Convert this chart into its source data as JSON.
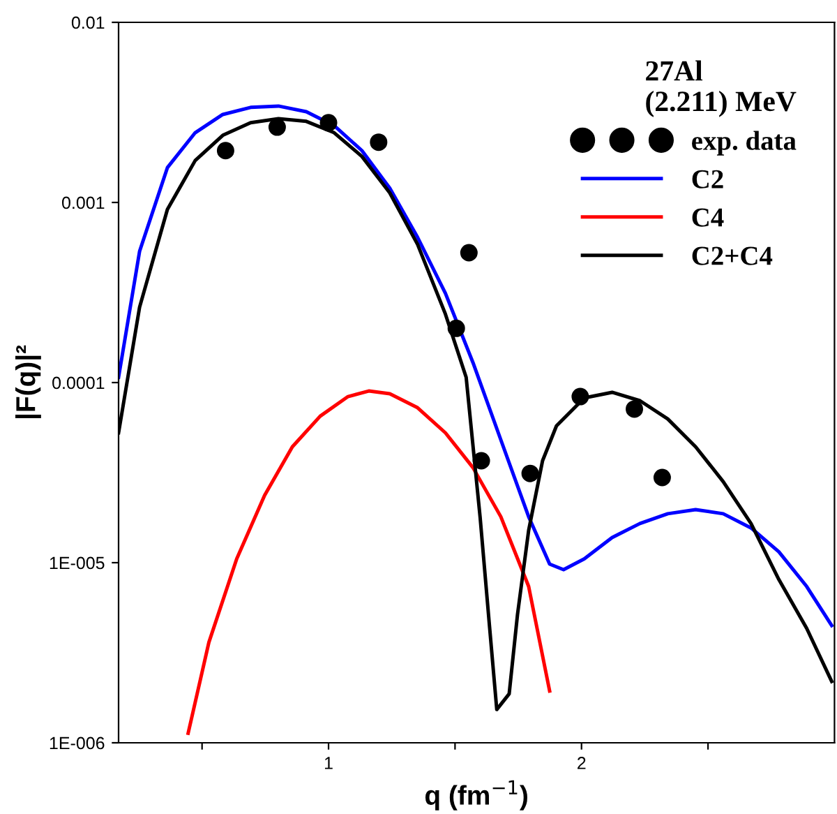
{
  "chart_data": {
    "type": "line",
    "legend_title": "27Al\n(2.211) MeV",
    "xlabel": "q (fm$^{−1}$)",
    "ylabel": "|F(q)|²",
    "log": "y",
    "legend": "top right",
    "grid": false,
    "xlim": [
      0.17,
      3.0
    ],
    "xticks": [
      {
        "value": 0.5,
        "label": null
      },
      1,
      {
        "value": 1.5,
        "label": null
      },
      2,
      {
        "value": 2.5,
        "label": null
      }
    ],
    "ylim": [
      1e-06,
      0.01
    ],
    "yticks": [
      {
        "value": 0.01,
        "label": "0.01"
      },
      {
        "value": 0.001,
        "label": "0.001"
      },
      {
        "value": 0.0001,
        "label": "0.0001"
      },
      {
        "value": 1e-05,
        "label": "1E-005"
      },
      {
        "value": 1e-06,
        "label": "1E-006"
      }
    ],
    "series": [
      {
        "name": "exp. data",
        "type": "scatter",
        "marker": "circle",
        "color": "#000000",
        "x": [
          0.593,
          0.797,
          1.0,
          1.198,
          1.505,
          1.555,
          1.604,
          1.797,
          1.995,
          2.209,
          2.319
        ],
        "values": [
          0.00194,
          0.00262,
          0.00277,
          0.00216,
          0.0002,
          0.000526,
          3.68e-05,
          3.13e-05,
          8.36e-05,
          7.13e-05,
          2.97e-05
        ]
      },
      {
        "name": "C2",
        "color": "#0000ff",
        "x": [
          0.17,
          0.253,
          0.363,
          0.473,
          0.582,
          0.692,
          0.802,
          0.912,
          1.022,
          1.132,
          1.242,
          1.352,
          1.462,
          1.571,
          1.681,
          1.791,
          1.874,
          1.929,
          2.011,
          2.121,
          2.231,
          2.341,
          2.451,
          2.56,
          2.67,
          2.78,
          2.89,
          2.989
        ],
        "values": [
          0.000107,
          0.000535,
          0.00156,
          0.00244,
          0.00308,
          0.00337,
          0.00343,
          0.00319,
          0.00267,
          0.00194,
          0.0012,
          0.00064,
          0.000313,
          0.000129,
          4.81e-05,
          1.8e-05,
          9.82e-06,
          9.15e-06,
          1.05e-05,
          1.38e-05,
          1.65e-05,
          1.87e-05,
          1.97e-05,
          1.87e-05,
          1.56e-05,
          1.15e-05,
          7.38e-06,
          4.48e-06
        ]
      },
      {
        "name": "C4",
        "color": "#ff0000",
        "x": [
          0.445,
          0.527,
          0.637,
          0.747,
          0.857,
          0.967,
          1.077,
          1.159,
          1.242,
          1.352,
          1.462,
          1.571,
          1.681,
          1.791,
          1.874
        ],
        "values": [
          1.13e-06,
          3.61e-06,
          1.05e-05,
          2.36e-05,
          4.4e-05,
          6.51e-05,
          8.36e-05,
          8.98e-05,
          8.67e-05,
          7.25e-05,
          5.26e-05,
          3.37e-05,
          1.8e-05,
          7.38e-06,
          1.94e-06
        ]
      },
      {
        "name": "C2+C4",
        "color": "#000000",
        "x": [
          0.17,
          0.253,
          0.363,
          0.473,
          0.582,
          0.692,
          0.802,
          0.912,
          1.022,
          1.132,
          1.242,
          1.352,
          1.462,
          1.544,
          1.599,
          1.637,
          1.665,
          1.714,
          1.747,
          1.791,
          1.846,
          1.901,
          2.011,
          2.121,
          2.231,
          2.341,
          2.451,
          2.56,
          2.67,
          2.78,
          2.89,
          2.989
        ],
        "values": [
          5.26e-05,
          0.000262,
          0.000915,
          0.00171,
          0.00236,
          0.00277,
          0.00292,
          0.00282,
          0.00244,
          0.0018,
          0.00113,
          0.000585,
          0.00024,
          0.000107,
          1.8e-05,
          4.32e-06,
          1.53e-06,
          1.87e-06,
          5.16e-06,
          1.51e-05,
          3.68e-05,
          5.75e-05,
          8.22e-05,
          8.83e-05,
          7.93e-05,
          6.28e-05,
          4.4e-05,
          2.82e-05,
          1.65e-05,
          8.07e-06,
          4.32e-06,
          2.19e-06
        ]
      }
    ]
  }
}
